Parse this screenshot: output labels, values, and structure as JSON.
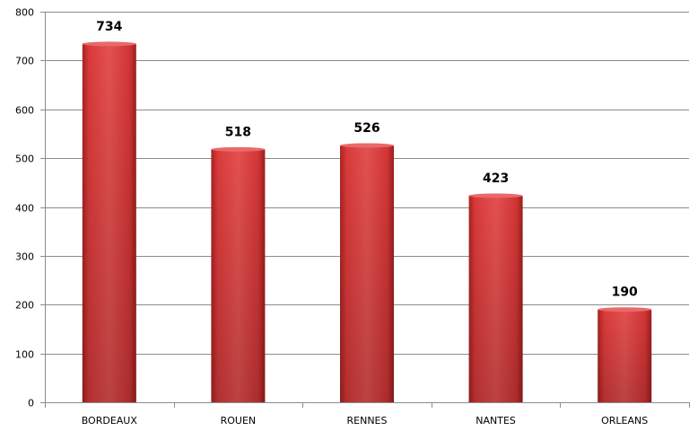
{
  "chart_data": {
    "type": "bar",
    "categories": [
      "BORDEAUX",
      "ROUEN",
      "RENNES",
      "NANTES",
      "ORLEANS"
    ],
    "values": [
      734,
      518,
      526,
      423,
      190
    ],
    "data_labels": [
      "734",
      "518",
      "526",
      "423",
      "190"
    ],
    "ylim": [
      0,
      800
    ],
    "yticks": [
      0,
      100,
      200,
      300,
      400,
      500,
      600,
      700,
      800
    ],
    "ytick_labels": [
      "0",
      "100",
      "200",
      "300",
      "400",
      "500",
      "600",
      "700",
      "800"
    ],
    "grid": true,
    "bar_color": "#d93a3a"
  }
}
